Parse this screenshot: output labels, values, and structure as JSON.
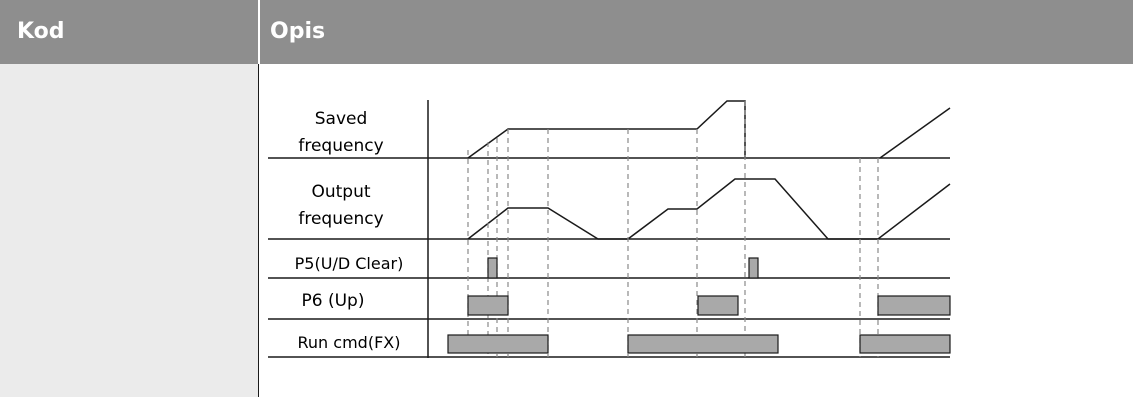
{
  "table": {
    "col_code_label": "Kod",
    "col_desc_label": "Opis"
  },
  "diagram": {
    "rows": [
      {
        "label_lines": [
          "Saved",
          "frequency"
        ]
      },
      {
        "label_lines": [
          "Output",
          "frequency"
        ]
      },
      {
        "label_lines": [
          "P5(U/D Clear)"
        ]
      },
      {
        "label_lines": [
          "P6 (Up)"
        ]
      },
      {
        "label_lines": [
          "Run cmd(FX)"
        ]
      }
    ]
  },
  "colors": {
    "header_bg": "#8e8e8e",
    "header_text": "#ffffff",
    "left_cell_bg": "#ebebeb",
    "pulse_fill": "#a9a9a9",
    "line": "#1a1a1a",
    "dashed_line": "#8a8a8a"
  }
}
